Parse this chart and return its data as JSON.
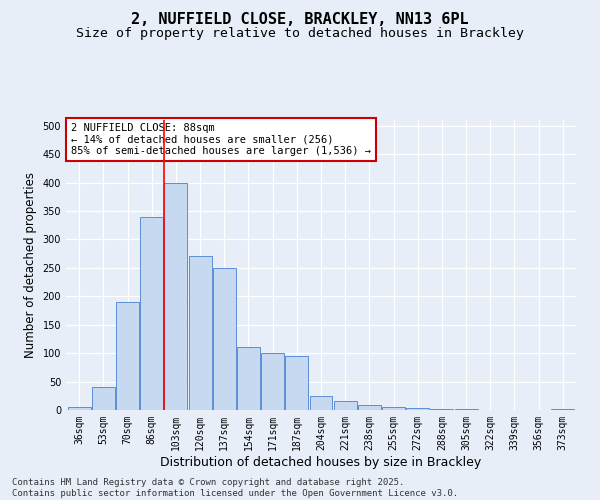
{
  "title_line1": "2, NUFFIELD CLOSE, BRACKLEY, NN13 6PL",
  "title_line2": "Size of property relative to detached houses in Brackley",
  "xlabel": "Distribution of detached houses by size in Brackley",
  "ylabel": "Number of detached properties",
  "bar_labels": [
    "36sqm",
    "53sqm",
    "70sqm",
    "86sqm",
    "103sqm",
    "120sqm",
    "137sqm",
    "154sqm",
    "171sqm",
    "187sqm",
    "204sqm",
    "221sqm",
    "238sqm",
    "255sqm",
    "272sqm",
    "288sqm",
    "305sqm",
    "322sqm",
    "339sqm",
    "356sqm",
    "373sqm"
  ],
  "bar_values": [
    5,
    40,
    190,
    340,
    400,
    270,
    250,
    110,
    100,
    95,
    25,
    15,
    8,
    5,
    3,
    2,
    1,
    0,
    0,
    0,
    1
  ],
  "bar_color": "#c6d9f1",
  "bar_edge_color": "#5b8ed6",
  "background_color": "#e8eef8",
  "grid_color": "#d0d8ec",
  "red_line_x": 3.5,
  "annotation_text": "2 NUFFIELD CLOSE: 88sqm\n← 14% of detached houses are smaller (256)\n85% of semi-detached houses are larger (1,536) →",
  "annotation_box_facecolor": "#ffffff",
  "annotation_box_edgecolor": "#cc0000",
  "ylim": [
    0,
    510
  ],
  "yticks": [
    0,
    50,
    100,
    150,
    200,
    250,
    300,
    350,
    400,
    450,
    500
  ],
  "footer_text": "Contains HM Land Registry data © Crown copyright and database right 2025.\nContains public sector information licensed under the Open Government Licence v3.0.",
  "title_fontsize": 11,
  "subtitle_fontsize": 9.5,
  "xlabel_fontsize": 9,
  "ylabel_fontsize": 8.5,
  "tick_fontsize": 7,
  "annotation_fontsize": 7.5,
  "footer_fontsize": 6.5
}
